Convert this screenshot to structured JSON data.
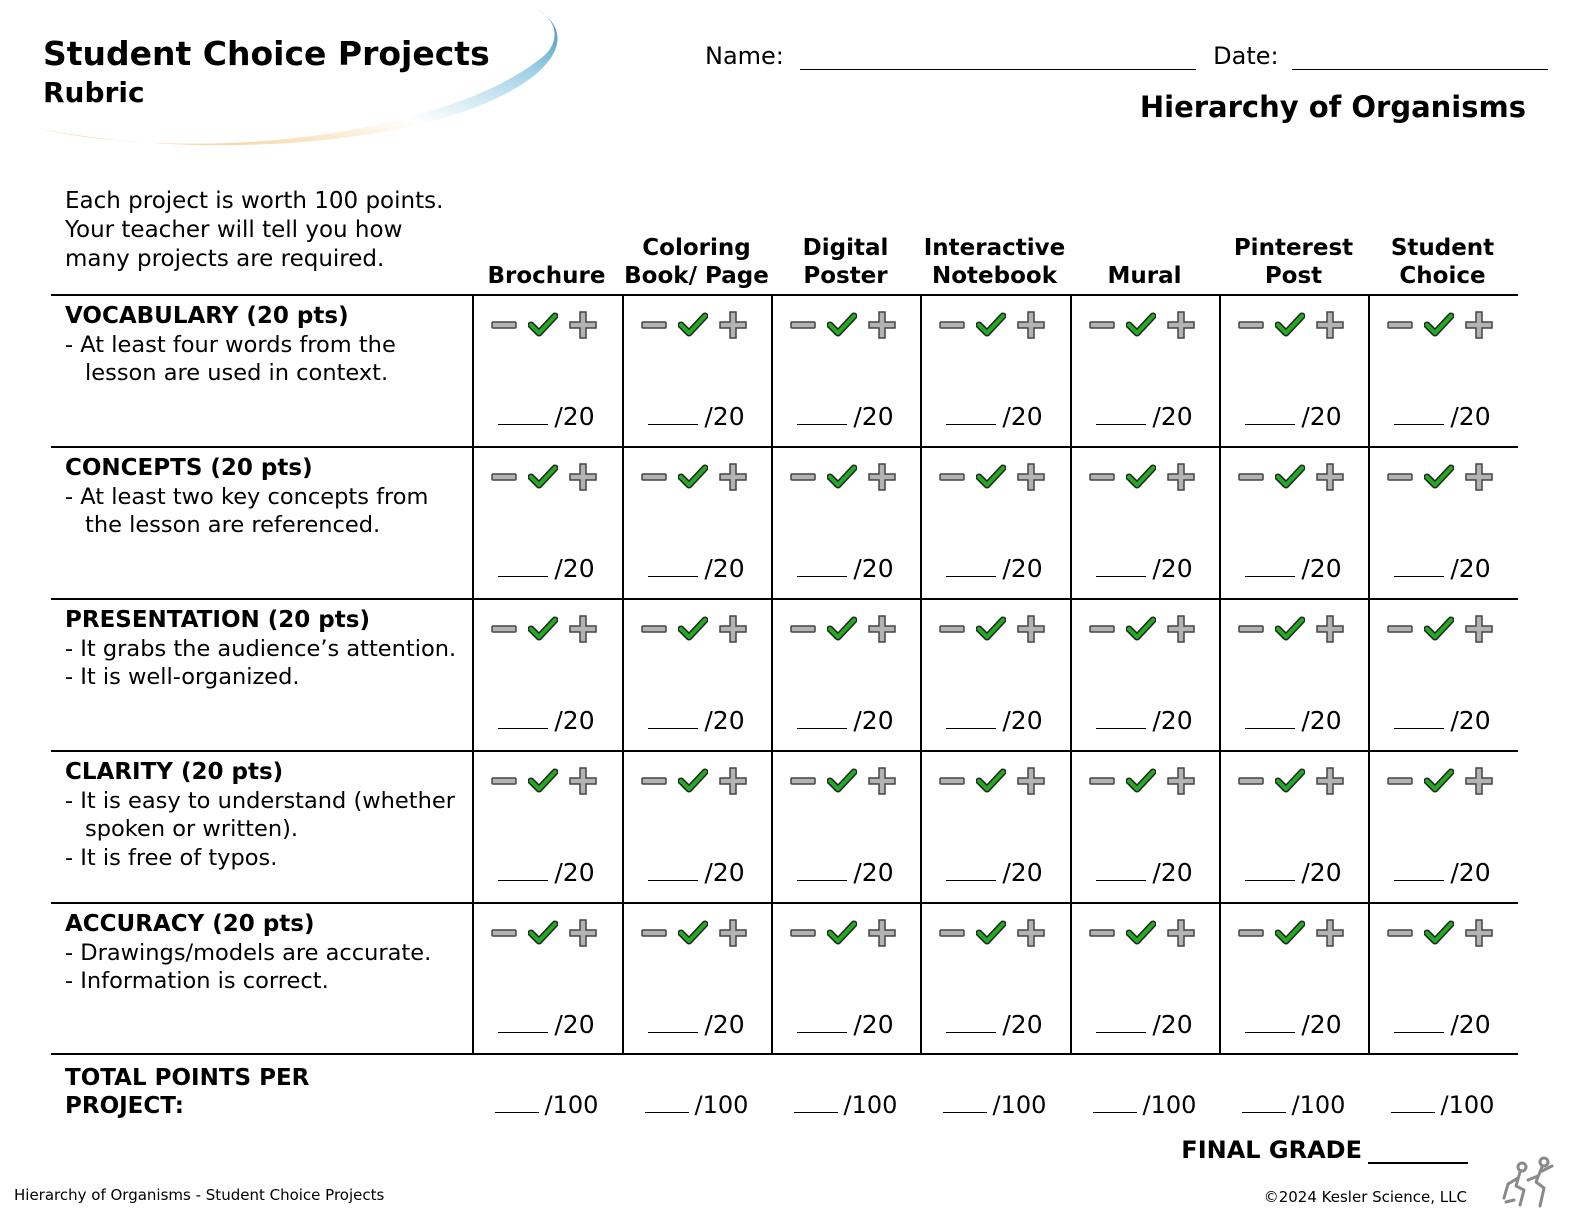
{
  "header": {
    "title": "Student Choice Projects",
    "subtitle": "Rubric",
    "name_label": "Name:",
    "date_label": "Date:",
    "topic": "Hierarchy of Organisms"
  },
  "intro": "Each project is worth 100 points. Your teacher will tell you how many projects are required.",
  "columns": [
    "Brochure",
    "Coloring Book/ Page",
    "Digital Poster",
    "Interactive Notebook",
    "Mural",
    "Pinterest Post",
    "Student Choice"
  ],
  "criteria": [
    {
      "heading": "VOCABULARY (20 pts)",
      "items": [
        "- At least four words from the lesson are used in context."
      ]
    },
    {
      "heading": "CONCEPTS (20 pts)",
      "items": [
        "- At least two key concepts from the lesson are referenced."
      ]
    },
    {
      "heading": "PRESENTATION (20 pts)",
      "items": [
        "-  It grabs the audience’s attention.",
        "-  It is well-organized."
      ]
    },
    {
      "heading": "CLARITY (20 pts)",
      "items": [
        "- It is easy to understand (whether spoken or written).",
        "- It is free of typos."
      ]
    },
    {
      "heading": "ACCURACY (20 pts)",
      "items": [
        "- Drawings/models are accurate.",
        "- Information is correct."
      ]
    }
  ],
  "score_suffix": "/20",
  "total_label": "TOTAL POINTS PER PROJECT:",
  "total_suffix": "/100",
  "final_grade_label": "FINAL GRADE",
  "footer": {
    "left": "Hierarchy of Organisms - Student Choice Projects",
    "right": "©2024  Kesler Science, LLC"
  },
  "icons": {
    "minus": "minus-icon",
    "check": "check-icon",
    "plus": "plus-icon",
    "logo": "kesler-science-logo-icon"
  },
  "colors": {
    "check": "#22aa22",
    "marks_gray": "#b3b3b3",
    "swoosh_blue": "#3a93b8",
    "swoosh_orange": "#f2b96a"
  }
}
